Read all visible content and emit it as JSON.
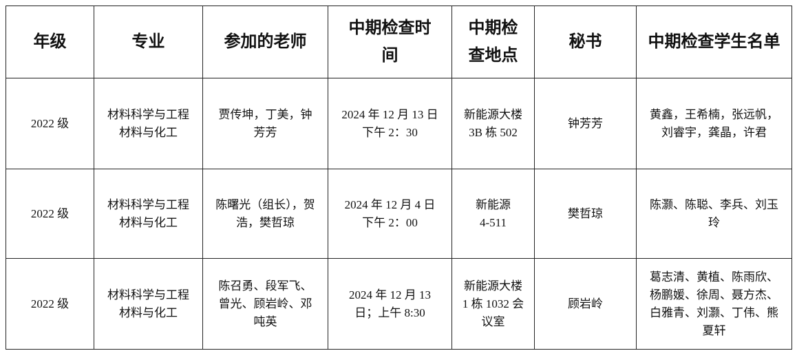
{
  "headers": [
    [
      "年级"
    ],
    [
      "专业"
    ],
    [
      "参加的老师"
    ],
    [
      "中期检查时",
      "间"
    ],
    [
      "中期检",
      "查地点"
    ],
    [
      "秘书"
    ],
    [
      "中期检查学生名单"
    ]
  ],
  "rows": [
    {
      "cells": [
        [
          "2022 级"
        ],
        [
          "材料科学与工程",
          "材料与化工"
        ],
        [
          "贾传坤，丁美，钟",
          "芳芳"
        ],
        [
          "2024 年 12 月 13 日",
          "下午 2：30"
        ],
        [
          "新能源大楼",
          "3B 栋 502"
        ],
        [
          "钟芳芳"
        ],
        [
          "黄鑫，王希楠，张远帆，",
          "刘睿宇，龚晶，许君"
        ]
      ]
    },
    {
      "cells": [
        [
          "2022 级"
        ],
        [
          "材料科学与工程",
          "材料与化工"
        ],
        [
          "陈曙光（组长），贺",
          "浩，樊哲琼"
        ],
        [
          "2024 年 12 月 4 日",
          "下午 2：00"
        ],
        [
          "新能源",
          "4-511"
        ],
        [
          "樊哲琼"
        ],
        [
          "陈灏、陈聪、李兵、刘玉",
          "玲"
        ]
      ]
    },
    {
      "cells": [
        [
          "2022 级"
        ],
        [
          "材料科学与工程",
          "材料与化工"
        ],
        [
          "陈召勇、段军飞、",
          "曾光、顾岩岭、邓",
          "吨英"
        ],
        [
          "2024 年 12 月 13",
          "日；上午 8:30"
        ],
        [
          "新能源大楼",
          "1 栋 1032 会",
          "议室"
        ],
        [
          "顾岩岭"
        ],
        [
          "葛志清、黄植、陈雨欣、",
          "杨鹏媛、徐周、聂方杰、",
          "白雅青、刘灏、丁伟、熊",
          "夏轩"
        ]
      ]
    }
  ]
}
